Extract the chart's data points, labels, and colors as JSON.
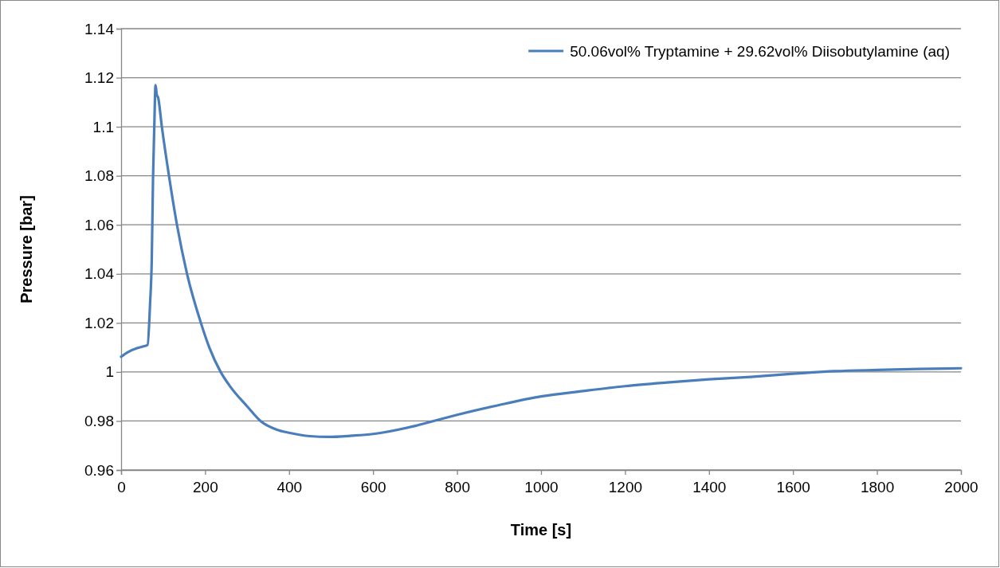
{
  "chart_data": {
    "type": "line",
    "xlabel": "Time [s]",
    "ylabel": "Pressure [bar]",
    "xlim": [
      0,
      2000
    ],
    "xticks": [
      0,
      200,
      400,
      600,
      800,
      1000,
      1200,
      1400,
      1600,
      1800,
      2000
    ],
    "ylim": [
      0.96,
      1.14
    ],
    "yticks": [
      0.96,
      0.98,
      1,
      1.02,
      1.04,
      1.06,
      1.08,
      1.1,
      1.12,
      1.14
    ],
    "grid": "y",
    "legend": "top right",
    "marker": "none",
    "line_style": "solid",
    "series": [
      {
        "name": "50.06vol% Tryptamine + 29.62vol% Diisobutylamine (aq)",
        "color": "#4a7ebb",
        "x": [
          0,
          15,
          38,
          55,
          63,
          69,
          73,
          76,
          79,
          82,
          85,
          88,
          97,
          114,
          133,
          157,
          190,
          210,
          237,
          260,
          300,
          332,
          370,
          400,
          450,
          493,
          550,
          600,
          700,
          744,
          800,
          900,
          1000,
          1100,
          1200,
          1300,
          1400,
          1500,
          1600,
          1700,
          1800,
          1900,
          2000
        ],
        "values": [
          1.0062,
          1.008,
          1.0097,
          1.0105,
          1.011,
          1.028,
          1.046,
          1.079,
          1.1,
          1.117,
          1.113,
          1.112,
          1.1,
          1.08,
          1.06,
          1.04,
          1.02,
          1.01,
          1.0,
          0.994,
          0.986,
          0.98,
          0.9765,
          0.9752,
          0.9738,
          0.9735,
          0.974,
          0.9747,
          0.978,
          0.98,
          0.9825,
          0.9865,
          0.99,
          0.9922,
          0.9942,
          0.9957,
          0.997,
          0.998,
          0.9993,
          1.0003,
          1.0008,
          1.0012,
          1.0015
        ]
      }
    ]
  }
}
